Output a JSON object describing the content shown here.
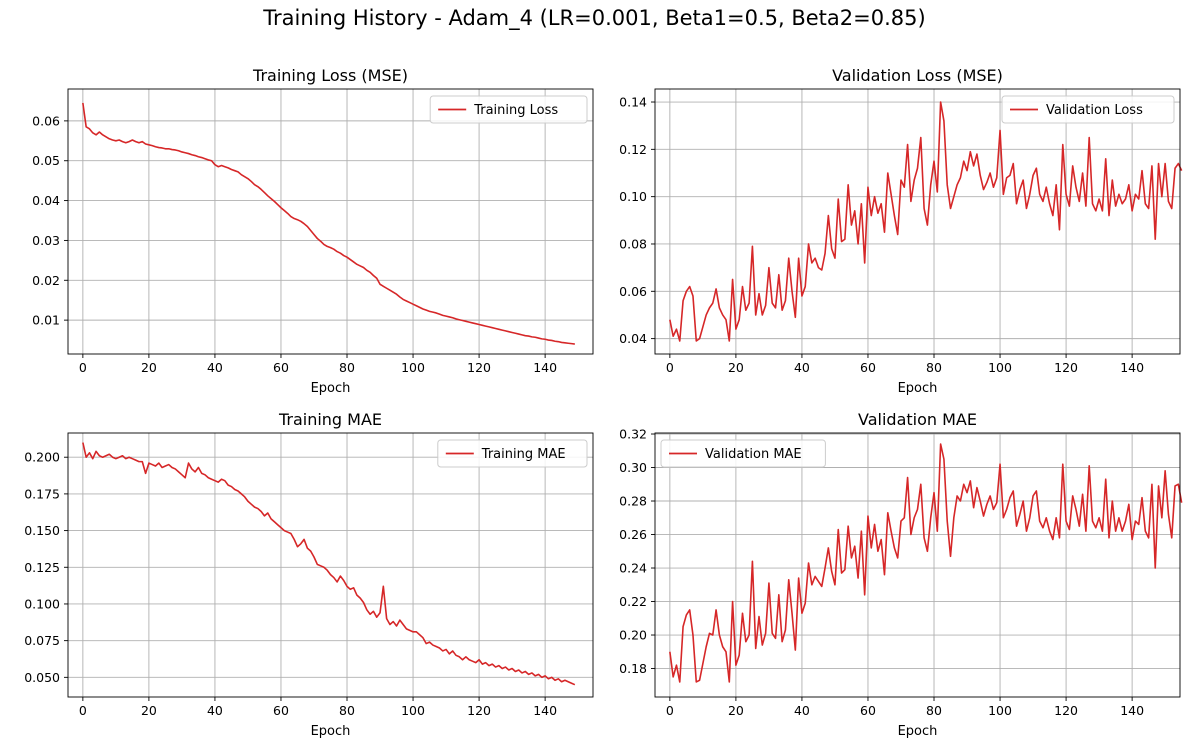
{
  "suptitle": "Training History - Adam_4 (LR=0.001, Beta1=0.5, Beta2=0.85)",
  "line_color": "#d62728",
  "chart_data": [
    {
      "type": "line",
      "title": "Training Loss (MSE)",
      "xlabel": "Epoch",
      "ylabel": "",
      "xlim": [
        -4.5,
        154.5
      ],
      "ylim": [
        0.0015,
        0.068
      ],
      "xticks": [
        0,
        20,
        40,
        60,
        80,
        100,
        120,
        140
      ],
      "yticks": [
        0.01,
        0.02,
        0.03,
        0.04,
        0.05,
        0.06
      ],
      "ytick_labels": [
        "0.01",
        "0.02",
        "0.03",
        "0.04",
        "0.05",
        "0.06"
      ],
      "grid": true,
      "legend_position": "upper right",
      "series": [
        {
          "name": "Training Loss",
          "x_start": 0,
          "values": [
            0.0645,
            0.0585,
            0.058,
            0.057,
            0.0565,
            0.0572,
            0.0565,
            0.056,
            0.0555,
            0.0552,
            0.055,
            0.0552,
            0.0548,
            0.0545,
            0.0548,
            0.0552,
            0.0548,
            0.0545,
            0.0548,
            0.0542,
            0.054,
            0.0538,
            0.0535,
            0.0533,
            0.0532,
            0.053,
            0.053,
            0.0528,
            0.0527,
            0.0525,
            0.0522,
            0.052,
            0.0518,
            0.0515,
            0.0513,
            0.051,
            0.0508,
            0.0505,
            0.0502,
            0.05,
            0.049,
            0.0485,
            0.0488,
            0.0485,
            0.0482,
            0.0478,
            0.0475,
            0.0472,
            0.0465,
            0.046,
            0.0455,
            0.0448,
            0.044,
            0.0435,
            0.0428,
            0.042,
            0.0412,
            0.0405,
            0.0398,
            0.039,
            0.0382,
            0.0375,
            0.0368,
            0.036,
            0.0355,
            0.0352,
            0.0348,
            0.0342,
            0.0335,
            0.0325,
            0.0315,
            0.0305,
            0.0298,
            0.029,
            0.0285,
            0.0282,
            0.0278,
            0.0272,
            0.0268,
            0.0262,
            0.0258,
            0.0252,
            0.0246,
            0.024,
            0.0236,
            0.0232,
            0.0225,
            0.022,
            0.0212,
            0.0205,
            0.019,
            0.0185,
            0.018,
            0.0175,
            0.017,
            0.0165,
            0.0158,
            0.0152,
            0.0148,
            0.0144,
            0.014,
            0.0136,
            0.0132,
            0.0128,
            0.0125,
            0.0122,
            0.012,
            0.0118,
            0.0115,
            0.0112,
            0.011,
            0.0108,
            0.0106,
            0.0103,
            0.0101,
            0.0099,
            0.0097,
            0.0095,
            0.0093,
            0.0091,
            0.0089,
            0.0087,
            0.0085,
            0.0083,
            0.0081,
            0.0079,
            0.0077,
            0.0075,
            0.0073,
            0.0071,
            0.0069,
            0.0067,
            0.0065,
            0.0063,
            0.0061,
            0.006,
            0.0058,
            0.0057,
            0.0055,
            0.0053,
            0.0052,
            0.005,
            0.0049,
            0.0047,
            0.0046,
            0.0044,
            0.0043,
            0.0042,
            0.0041,
            0.004
          ]
        }
      ]
    },
    {
      "type": "line",
      "title": "Validation Loss (MSE)",
      "xlabel": "Epoch",
      "ylabel": "",
      "xlim": [
        -4.5,
        154.5
      ],
      "ylim": [
        0.0335,
        0.1455
      ],
      "xticks": [
        0,
        20,
        40,
        60,
        80,
        100,
        120,
        140
      ],
      "yticks": [
        0.04,
        0.06,
        0.08,
        0.1,
        0.12,
        0.14
      ],
      "ytick_labels": [
        "0.04",
        "0.06",
        "0.08",
        "0.10",
        "0.12",
        "0.14"
      ],
      "grid": true,
      "legend_position": "upper right",
      "series": [
        {
          "name": "Validation Loss",
          "x_start": 0,
          "values": [
            0.048,
            0.041,
            0.044,
            0.039,
            0.056,
            0.06,
            0.062,
            0.058,
            0.039,
            0.04,
            0.045,
            0.05,
            0.053,
            0.055,
            0.061,
            0.053,
            0.05,
            0.048,
            0.039,
            0.065,
            0.044,
            0.048,
            0.062,
            0.052,
            0.055,
            0.079,
            0.05,
            0.059,
            0.05,
            0.054,
            0.07,
            0.055,
            0.053,
            0.067,
            0.052,
            0.056,
            0.074,
            0.06,
            0.049,
            0.074,
            0.058,
            0.062,
            0.08,
            0.072,
            0.074,
            0.07,
            0.069,
            0.076,
            0.092,
            0.078,
            0.074,
            0.099,
            0.081,
            0.082,
            0.105,
            0.088,
            0.094,
            0.08,
            0.097,
            0.072,
            0.104,
            0.092,
            0.1,
            0.093,
            0.097,
            0.085,
            0.11,
            0.101,
            0.092,
            0.084,
            0.107,
            0.104,
            0.122,
            0.098,
            0.107,
            0.112,
            0.125,
            0.095,
            0.088,
            0.105,
            0.115,
            0.102,
            0.14,
            0.132,
            0.105,
            0.095,
            0.1,
            0.105,
            0.108,
            0.115,
            0.111,
            0.119,
            0.113,
            0.118,
            0.109,
            0.103,
            0.106,
            0.11,
            0.104,
            0.108,
            0.128,
            0.101,
            0.108,
            0.109,
            0.114,
            0.097,
            0.103,
            0.107,
            0.095,
            0.101,
            0.109,
            0.112,
            0.101,
            0.098,
            0.104,
            0.097,
            0.092,
            0.105,
            0.086,
            0.122,
            0.101,
            0.096,
            0.113,
            0.104,
            0.098,
            0.11,
            0.096,
            0.125,
            0.097,
            0.094,
            0.099,
            0.094,
            0.116,
            0.092,
            0.107,
            0.096,
            0.101,
            0.097,
            0.099,
            0.105,
            0.094,
            0.101,
            0.099,
            0.111,
            0.097,
            0.095,
            0.113,
            0.082,
            0.114,
            0.1,
            0.114,
            0.098,
            0.095,
            0.112,
            0.114,
            0.111
          ]
        }
      ]
    },
    {
      "type": "line",
      "title": "Training MAE",
      "xlabel": "Epoch",
      "ylabel": "",
      "xlim": [
        -4.5,
        154.5
      ],
      "ylim": [
        0.0366,
        0.2165
      ],
      "xticks": [
        0,
        20,
        40,
        60,
        80,
        100,
        120,
        140
      ],
      "yticks": [
        0.05,
        0.075,
        0.1,
        0.125,
        0.15,
        0.175,
        0.2
      ],
      "ytick_labels": [
        "0.050",
        "0.075",
        "0.100",
        "0.125",
        "0.150",
        "0.175",
        "0.200"
      ],
      "grid": true,
      "legend_position": "upper right",
      "series": [
        {
          "name": "Training MAE",
          "x_start": 0,
          "values": [
            0.21,
            0.2,
            0.203,
            0.199,
            0.204,
            0.201,
            0.2,
            0.201,
            0.202,
            0.2,
            0.199,
            0.2,
            0.201,
            0.199,
            0.2,
            0.199,
            0.198,
            0.197,
            0.197,
            0.189,
            0.196,
            0.195,
            0.194,
            0.196,
            0.193,
            0.194,
            0.195,
            0.193,
            0.192,
            0.19,
            0.188,
            0.186,
            0.196,
            0.192,
            0.19,
            0.193,
            0.189,
            0.188,
            0.186,
            0.185,
            0.184,
            0.183,
            0.185,
            0.184,
            0.181,
            0.18,
            0.178,
            0.177,
            0.175,
            0.173,
            0.17,
            0.168,
            0.166,
            0.165,
            0.163,
            0.16,
            0.162,
            0.158,
            0.156,
            0.154,
            0.152,
            0.15,
            0.149,
            0.148,
            0.144,
            0.139,
            0.141,
            0.144,
            0.138,
            0.136,
            0.132,
            0.127,
            0.126,
            0.125,
            0.123,
            0.12,
            0.118,
            0.115,
            0.119,
            0.116,
            0.112,
            0.11,
            0.111,
            0.106,
            0.104,
            0.101,
            0.096,
            0.093,
            0.095,
            0.091,
            0.094,
            0.112,
            0.09,
            0.086,
            0.088,
            0.085,
            0.089,
            0.086,
            0.083,
            0.082,
            0.081,
            0.081,
            0.079,
            0.077,
            0.073,
            0.074,
            0.072,
            0.071,
            0.07,
            0.068,
            0.069,
            0.066,
            0.068,
            0.065,
            0.064,
            0.062,
            0.064,
            0.062,
            0.061,
            0.06,
            0.062,
            0.059,
            0.06,
            0.058,
            0.059,
            0.057,
            0.058,
            0.056,
            0.057,
            0.055,
            0.056,
            0.054,
            0.055,
            0.053,
            0.054,
            0.052,
            0.053,
            0.051,
            0.052,
            0.05,
            0.051,
            0.049,
            0.05,
            0.048,
            0.049,
            0.047,
            0.048,
            0.047,
            0.046,
            0.045
          ]
        }
      ]
    },
    {
      "type": "line",
      "title": "Validation MAE",
      "xlabel": "Epoch",
      "ylabel": "",
      "xlim": [
        -4.5,
        154.5
      ],
      "ylim": [
        0.163,
        0.3206
      ],
      "xticks": [
        0,
        20,
        40,
        60,
        80,
        100,
        120,
        140
      ],
      "yticks": [
        0.18,
        0.2,
        0.22,
        0.24,
        0.26,
        0.28,
        0.3,
        0.32
      ],
      "ytick_labels": [
        "0.18",
        "0.20",
        "0.22",
        "0.24",
        "0.26",
        "0.28",
        "0.30",
        "0.32"
      ],
      "grid": true,
      "legend_position": "upper left",
      "series": [
        {
          "name": "Validation MAE",
          "x_start": 0,
          "values": [
            0.19,
            0.175,
            0.182,
            0.172,
            0.205,
            0.212,
            0.215,
            0.2,
            0.172,
            0.173,
            0.183,
            0.193,
            0.201,
            0.2,
            0.215,
            0.2,
            0.193,
            0.19,
            0.172,
            0.22,
            0.182,
            0.188,
            0.213,
            0.196,
            0.2,
            0.244,
            0.192,
            0.211,
            0.194,
            0.201,
            0.231,
            0.201,
            0.198,
            0.224,
            0.196,
            0.203,
            0.233,
            0.213,
            0.191,
            0.234,
            0.213,
            0.219,
            0.243,
            0.23,
            0.235,
            0.232,
            0.229,
            0.24,
            0.252,
            0.238,
            0.23,
            0.263,
            0.237,
            0.239,
            0.265,
            0.246,
            0.253,
            0.234,
            0.262,
            0.224,
            0.271,
            0.252,
            0.266,
            0.25,
            0.257,
            0.236,
            0.273,
            0.262,
            0.252,
            0.246,
            0.268,
            0.27,
            0.294,
            0.26,
            0.27,
            0.275,
            0.29,
            0.258,
            0.25,
            0.27,
            0.285,
            0.262,
            0.314,
            0.305,
            0.268,
            0.247,
            0.27,
            0.283,
            0.28,
            0.29,
            0.285,
            0.292,
            0.276,
            0.288,
            0.28,
            0.271,
            0.278,
            0.283,
            0.275,
            0.279,
            0.302,
            0.27,
            0.275,
            0.282,
            0.286,
            0.265,
            0.272,
            0.28,
            0.262,
            0.27,
            0.283,
            0.286,
            0.268,
            0.264,
            0.27,
            0.262,
            0.257,
            0.27,
            0.258,
            0.302,
            0.268,
            0.263,
            0.283,
            0.275,
            0.265,
            0.284,
            0.262,
            0.301,
            0.268,
            0.264,
            0.27,
            0.262,
            0.293,
            0.258,
            0.28,
            0.262,
            0.27,
            0.262,
            0.268,
            0.278,
            0.257,
            0.268,
            0.266,
            0.282,
            0.262,
            0.258,
            0.29,
            0.24,
            0.289,
            0.27,
            0.298,
            0.272,
            0.258,
            0.289,
            0.29,
            0.279
          ]
        }
      ]
    }
  ]
}
